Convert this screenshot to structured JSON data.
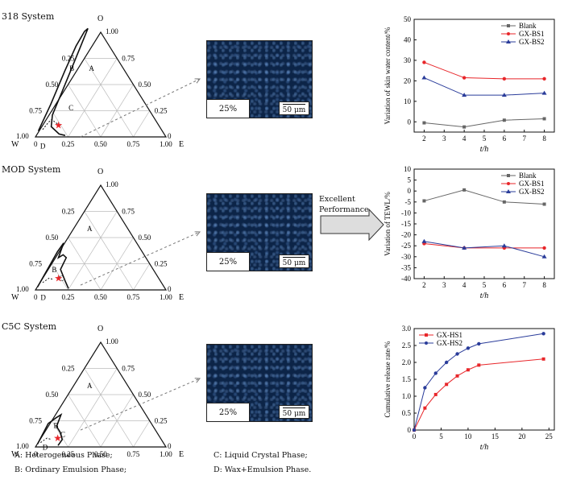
{
  "systems": [
    {
      "label": "318 System",
      "color": "#5aa832"
    },
    {
      "label": "MOD System",
      "color": "#3e86c6"
    },
    {
      "label": "C5C System",
      "color": "#e07820"
    }
  ],
  "ternary": {
    "apex_top": "O",
    "apex_left": "W",
    "apex_right": "E",
    "ticks": [
      "0.25",
      "0.50",
      "0.75",
      "1.00"
    ],
    "zero": "0",
    "regions": [
      "A",
      "B",
      "C",
      "D"
    ]
  },
  "micrographs": [
    {
      "percent": "25%",
      "scale": "50 μm"
    },
    {
      "percent": "25%",
      "scale": "50 μm"
    },
    {
      "percent": "25%",
      "scale": "50 μm"
    }
  ],
  "arrow_label": [
    "Excellent",
    "Performance"
  ],
  "legend_notes": {
    "a": "A: Heterogeneous Phase;",
    "b": "B: Ordinary Emulsion Phase;",
    "c": "C: Liquid Crystal Phase;",
    "d": "D: Wax+Emulsion Phase."
  },
  "colors": {
    "blank": "#666666",
    "bs1": "#e8262a",
    "bs2": "#2a3c9a",
    "bg": "#ffffff"
  },
  "chart_data": [
    {
      "type": "line",
      "ylabel": "Variation of skin water content/%",
      "xlabel": "t/h",
      "x": [
        2,
        4,
        6,
        8
      ],
      "xlim": [
        1.5,
        8.5
      ],
      "ylim": [
        -5,
        50
      ],
      "yticks": [
        0,
        10,
        20,
        30,
        40,
        50
      ],
      "xticks": [
        2,
        3,
        4,
        5,
        6,
        7,
        8
      ],
      "series": [
        {
          "name": "Blank",
          "color": "#666666",
          "marker": "square",
          "values": [
            -0.5,
            -2.5,
            0.8,
            1.5
          ]
        },
        {
          "name": "GX-BS1",
          "color": "#e8262a",
          "marker": "circle",
          "values": [
            29,
            21.5,
            21,
            21
          ]
        },
        {
          "name": "GX-BS2",
          "color": "#2a3c9a",
          "marker": "triangle",
          "values": [
            21.5,
            13,
            13,
            14
          ]
        }
      ],
      "legend": "top-right"
    },
    {
      "type": "line",
      "ylabel": "Variation of TEWL/%",
      "xlabel": "t/h",
      "x": [
        2,
        4,
        6,
        8
      ],
      "xlim": [
        1.5,
        8.5
      ],
      "ylim": [
        -40,
        10
      ],
      "yticks": [
        -40,
        -35,
        -30,
        -25,
        -20,
        -15,
        -10,
        -5,
        0,
        5,
        10
      ],
      "xticks": [
        2,
        3,
        4,
        5,
        6,
        7,
        8
      ],
      "series": [
        {
          "name": "Blank",
          "color": "#666666",
          "marker": "square",
          "values": [
            -4.5,
            0.5,
            -5,
            -6
          ]
        },
        {
          "name": "GX-BS1",
          "color": "#e8262a",
          "marker": "circle",
          "values": [
            -24,
            -26,
            -26,
            -26
          ]
        },
        {
          "name": "GX-BS2",
          "color": "#2a3c9a",
          "marker": "triangle",
          "values": [
            -23,
            -26,
            -25,
            -30
          ]
        }
      ],
      "legend": "top-right"
    },
    {
      "type": "line",
      "ylabel": "Cumulative release rate/%",
      "xlabel": "t/h",
      "x": [
        0,
        2,
        4,
        6,
        8,
        10,
        12,
        24
      ],
      "xlim": [
        0,
        26
      ],
      "ylim": [
        0,
        3.0
      ],
      "yticks": [
        0,
        0.5,
        1.0,
        1.5,
        2.0,
        2.5,
        3.0
      ],
      "ytick_labels": [
        "0",
        "0.5",
        "1.0",
        "1.5",
        "2.0",
        "2.5",
        "3.0"
      ],
      "xticks": [
        0,
        5,
        10,
        15,
        20,
        25
      ],
      "series": [
        {
          "name": "GX-HS1",
          "color": "#e8262a",
          "marker": "square",
          "x": [
            0,
            2,
            4,
            6,
            8,
            10,
            12,
            24
          ],
          "values": [
            0,
            0.65,
            1.05,
            1.35,
            1.6,
            1.78,
            1.92,
            2.1
          ]
        },
        {
          "name": "GX-HS2",
          "color": "#2a3c9a",
          "marker": "circle",
          "x": [
            0,
            2,
            4,
            6,
            8,
            10,
            12,
            24
          ],
          "values": [
            0,
            1.25,
            1.68,
            2.0,
            2.25,
            2.42,
            2.55,
            2.85
          ]
        }
      ],
      "legend": "top-left"
    }
  ]
}
